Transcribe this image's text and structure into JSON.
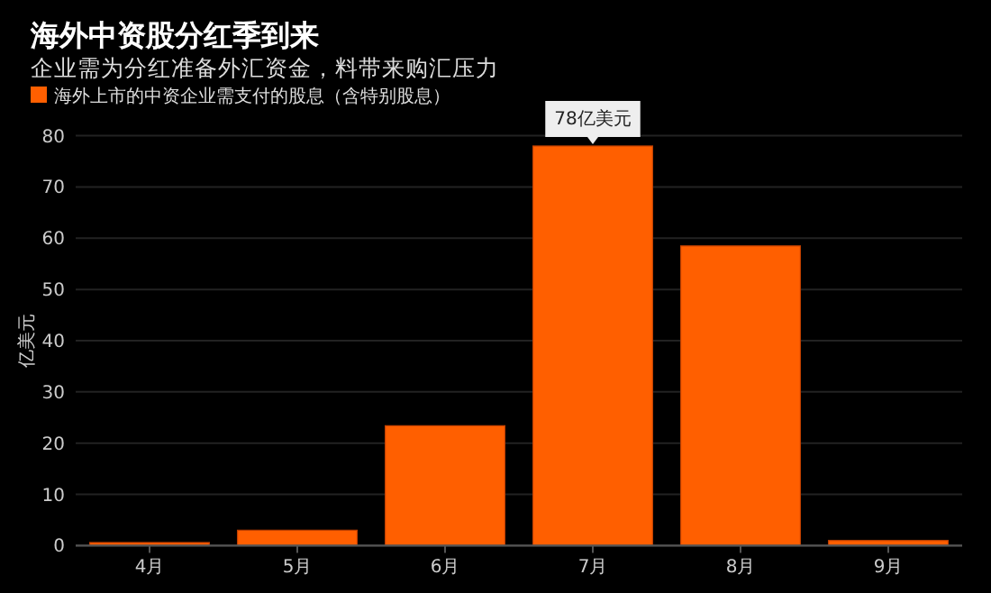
{
  "chart_data": {
    "type": "bar",
    "title": "海外中资股分红季到来",
    "subtitle": "企业需为分红准备外汇资金，料带来购汇压力",
    "ylabel": "亿美元",
    "categories": [
      "4月",
      "5月",
      "6月",
      "7月",
      "8月",
      "9月"
    ],
    "series": [
      {
        "name": "海外上市的中资企业需支付的股息（含特别股息）",
        "color": "#ff5f00",
        "values": [
          0.6,
          3,
          23.4,
          78,
          58.5,
          1
        ]
      }
    ],
    "ylim": [
      0,
      80
    ],
    "yticks": [
      0,
      10,
      20,
      30,
      40,
      50,
      60,
      70,
      80
    ],
    "grid": "y",
    "legend": "top left",
    "annotations": [
      {
        "text": "78亿美元",
        "x": "7月",
        "y": 78
      }
    ]
  }
}
